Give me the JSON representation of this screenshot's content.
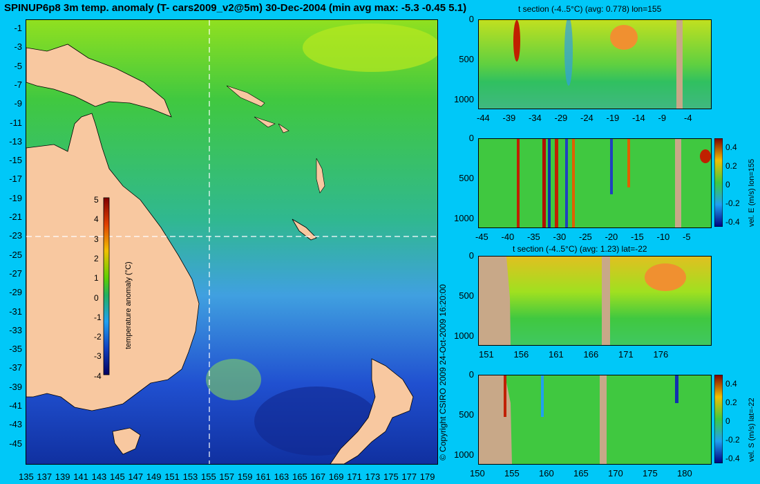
{
  "title": "SPINUP6p8 3m temp. anomaly (T- cars2009_v2@5m) 30-Dec-2004 (min avg max: -5.3 -0.45 5.1)",
  "copyright": "© Copyright CSIRO 2009   24-Oct-2009 16:20:00",
  "map": {
    "lat_ticks": [
      "-1",
      "-3",
      "-5",
      "-7",
      "-9",
      "-11",
      "-13",
      "-15",
      "-17",
      "-19",
      "-21",
      "-23",
      "-25",
      "-27",
      "-29",
      "-31",
      "-33",
      "-35",
      "-37",
      "-39",
      "-41",
      "-43",
      "-45"
    ],
    "lon_ticks": [
      "135",
      "137",
      "139",
      "141",
      "143",
      "145",
      "147",
      "149",
      "151",
      "153",
      "155",
      "157",
      "159",
      "161",
      "163",
      "165",
      "167",
      "169",
      "171",
      "173",
      "175",
      "177",
      "179"
    ],
    "section_lon": 155,
    "section_lat": -22,
    "colorbar": {
      "label": "temperature anomaly (°C)",
      "ticks": [
        "5",
        "4",
        "3",
        "2",
        "1",
        "0",
        "-1",
        "-2",
        "-3",
        "-4"
      ],
      "range": [
        -4,
        5
      ]
    }
  },
  "panels": {
    "p1": {
      "title": "t section (-4..5°C) (avg: 0.778) lon=155",
      "y_ticks": [
        "0",
        "500",
        "1000"
      ],
      "x_ticks": [
        "-44",
        "-39",
        "-34",
        "-29",
        "-24",
        "-19",
        "-14",
        "-9",
        "-4"
      ]
    },
    "p2": {
      "y_ticks": [
        "0",
        "500",
        "1000"
      ],
      "x_ticks": [
        "-45",
        "-40",
        "-35",
        "-30",
        "-25",
        "-20",
        "-15",
        "-10",
        "-5"
      ],
      "cb_label": "vel. E (m/s) lon=155",
      "cb_ticks": [
        "0.4",
        "0.2",
        "0",
        "-0.2",
        "-0.4"
      ]
    },
    "p3": {
      "title": "t section (-4..5°C) (avg: 1.23) lat=-22",
      "y_ticks": [
        "0",
        "500",
        "1000"
      ],
      "x_ticks": [
        "151",
        "156",
        "161",
        "166",
        "171",
        "176"
      ]
    },
    "p4": {
      "y_ticks": [
        "0",
        "500",
        "1000"
      ],
      "x_ticks": [
        "150",
        "155",
        "160",
        "165",
        "170",
        "175",
        "180"
      ],
      "cb_label": "vel. S (m/s) lat=-22",
      "cb_ticks": [
        "0.4",
        "0.2",
        "0",
        "-0.2",
        "-0.4"
      ]
    }
  },
  "colors": {
    "background": "#00c8f8",
    "land": "#f8c8a0",
    "section_land": "#c8a888",
    "ocean_mid": "#30c030"
  }
}
